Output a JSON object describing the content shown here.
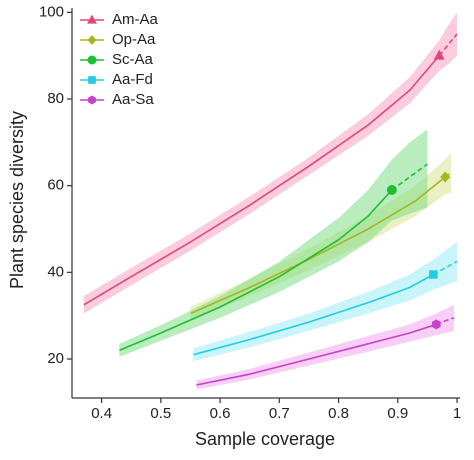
{
  "chart_data": {
    "type": "rarefaction",
    "x_label": "Sample coverage",
    "y_label": "Plant species diversity",
    "xlim": [
      0.35,
      1.005
    ],
    "ylim": [
      11,
      101
    ],
    "xticks": [
      0.4,
      0.5,
      0.6,
      0.7,
      0.8,
      0.9,
      1
    ],
    "yticks": [
      20,
      40,
      60,
      80,
      100
    ],
    "grid": false,
    "legend": "upper left",
    "series": [
      {
        "name": "Am-Aa",
        "color": "#e0457b",
        "band_color": "#f5a3c0",
        "marker": "triangle",
        "x": [
          0.37,
          0.45,
          0.55,
          0.65,
          0.75,
          0.85,
          0.92,
          0.97
        ],
        "values": [
          32.5,
          39,
          47,
          55.5,
          64.5,
          74,
          82,
          90
        ],
        "lower": [
          30.5,
          37,
          45,
          53.5,
          62.5,
          71.5,
          79,
          86.5
        ],
        "upper": [
          34.5,
          41,
          49,
          57.5,
          66.5,
          76.5,
          85,
          93.5
        ],
        "ext_x": [
          0.97,
          0.985,
          1.0
        ],
        "ext_values": [
          90,
          92.5,
          95
        ],
        "ext_lower": [
          86.5,
          88,
          90
        ],
        "ext_upper": [
          93.5,
          97,
          100
        ]
      },
      {
        "name": "Op-Aa",
        "color": "#a6b521",
        "band_color": "#d8e38f",
        "marker": "diamond",
        "x": [
          0.55,
          0.65,
          0.75,
          0.85,
          0.93,
          0.98
        ],
        "values": [
          30.5,
          36.5,
          43,
          50,
          56.5,
          62
        ],
        "lower": [
          29,
          34.5,
          40.5,
          47,
          53,
          58
        ],
        "upper": [
          32,
          38.5,
          45.5,
          53,
          60,
          66
        ],
        "ext_x": [
          0.98,
          0.99
        ],
        "ext_values": [
          62,
          63
        ],
        "ext_lower": [
          58,
          58.5
        ],
        "ext_upper": [
          66,
          67.5
        ]
      },
      {
        "name": "Sc-Aa",
        "color": "#1fbf32",
        "band_color": "#7fdf88",
        "marker": "circle",
        "x": [
          0.43,
          0.5,
          0.6,
          0.7,
          0.8,
          0.85,
          0.89
        ],
        "values": [
          22,
          26,
          32,
          39,
          47.5,
          53,
          59
        ],
        "lower": [
          20.5,
          24.2,
          29.5,
          35.5,
          42.5,
          47,
          52
        ],
        "upper": [
          23.5,
          27.8,
          34.5,
          42.5,
          52.5,
          59,
          66
        ],
        "ext_x": [
          0.89,
          0.92,
          0.95
        ],
        "ext_values": [
          59,
          62,
          65
        ],
        "ext_lower": [
          52,
          53.5,
          55
        ],
        "ext_upper": [
          66,
          70,
          73
        ]
      },
      {
        "name": "Aa-Fd",
        "color": "#22cde0",
        "band_color": "#9decf5",
        "marker": "square",
        "x": [
          0.555,
          0.65,
          0.75,
          0.85,
          0.92,
          0.96
        ],
        "values": [
          21,
          24.5,
          28.5,
          33,
          36.5,
          39.5
        ],
        "lower": [
          19.5,
          22.7,
          26.5,
          30.5,
          33.5,
          36
        ],
        "upper": [
          22.5,
          26.3,
          30.5,
          35.5,
          39.5,
          43
        ],
        "ext_x": [
          0.96,
          0.98,
          1.0
        ],
        "ext_values": [
          39.5,
          41,
          42.5
        ],
        "ext_lower": [
          36,
          37,
          38
        ],
        "ext_upper": [
          43,
          45,
          47
        ]
      },
      {
        "name": "Aa-Sa",
        "color": "#c940c9",
        "band_color": "#eea6ee",
        "marker": "hexagon",
        "x": [
          0.56,
          0.65,
          0.75,
          0.85,
          0.92,
          0.965
        ],
        "values": [
          14,
          16.5,
          20,
          23.5,
          26,
          28
        ],
        "lower": [
          13,
          15.3,
          18.5,
          21.7,
          24,
          25.5
        ],
        "upper": [
          15,
          17.7,
          21.5,
          25.3,
          28,
          30.5
        ],
        "ext_x": [
          0.965,
          0.98,
          0.995
        ],
        "ext_values": [
          28,
          28.8,
          29.5
        ],
        "ext_lower": [
          25.5,
          26,
          26.5
        ],
        "ext_upper": [
          30.5,
          31.5,
          32.5
        ]
      }
    ]
  }
}
